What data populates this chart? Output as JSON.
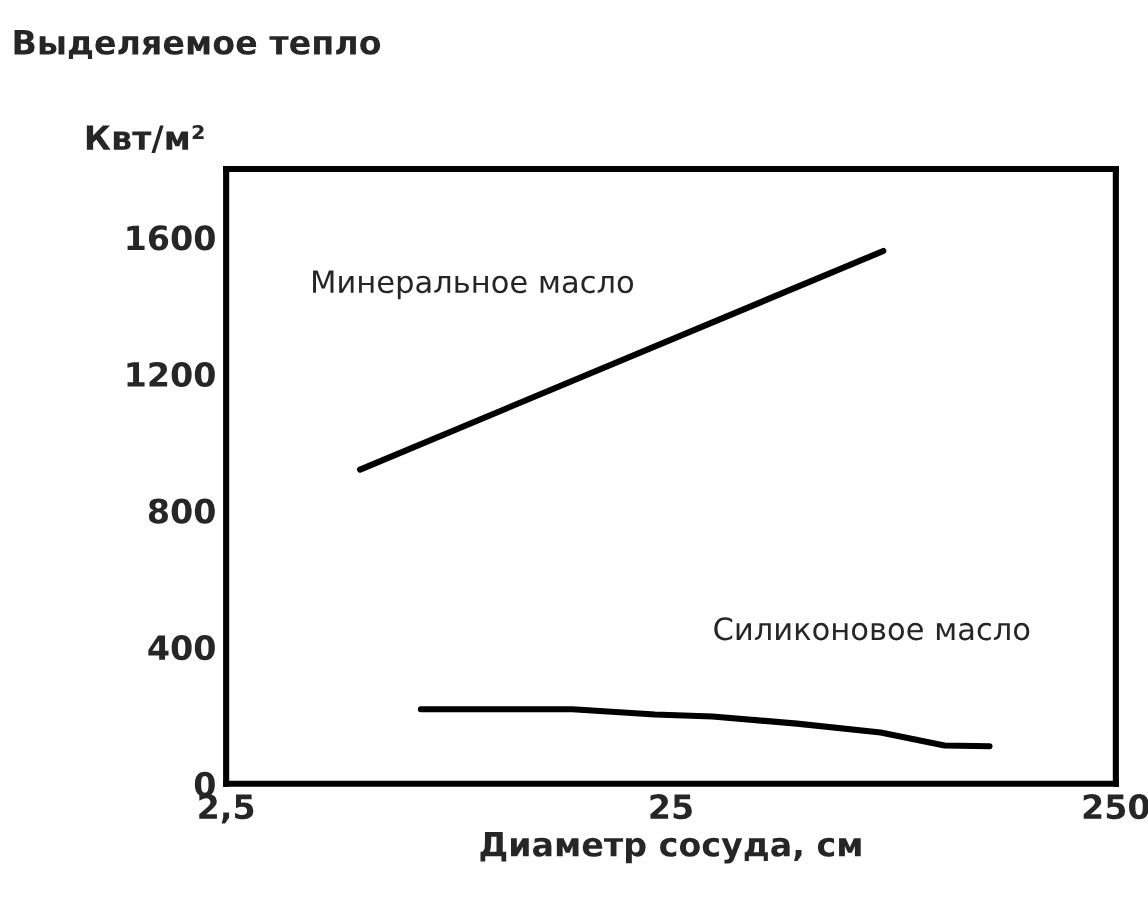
{
  "chart_data": {
    "type": "line",
    "title": "Выделяемое тепло",
    "ylabel": "Квт/м²",
    "xlabel": "Диаметр сосуда, см",
    "log": "x",
    "xlim": [
      2.5,
      250
    ],
    "xticks": [
      {
        "value": 2.5,
        "label": "2,5"
      },
      25,
      250
    ],
    "ylim": [
      0,
      1800
    ],
    "yticks": [
      0,
      400,
      800,
      1200,
      1600
    ],
    "grid": false,
    "legend": false,
    "line_style": "solid",
    "marker": "none",
    "series": [
      {
        "name": "Минеральное масло",
        "color": "#000000",
        "x": [
          5,
          75
        ],
        "values": [
          920,
          1560
        ]
      },
      {
        "name": "Силиконовое масло",
        "color": "#000000",
        "x": [
          6.85,
          15,
          23,
          31,
          48,
          74,
          103,
          130
        ],
        "values": [
          218,
          218,
          203,
          197,
          176,
          150,
          112,
          110
        ]
      }
    ]
  }
}
